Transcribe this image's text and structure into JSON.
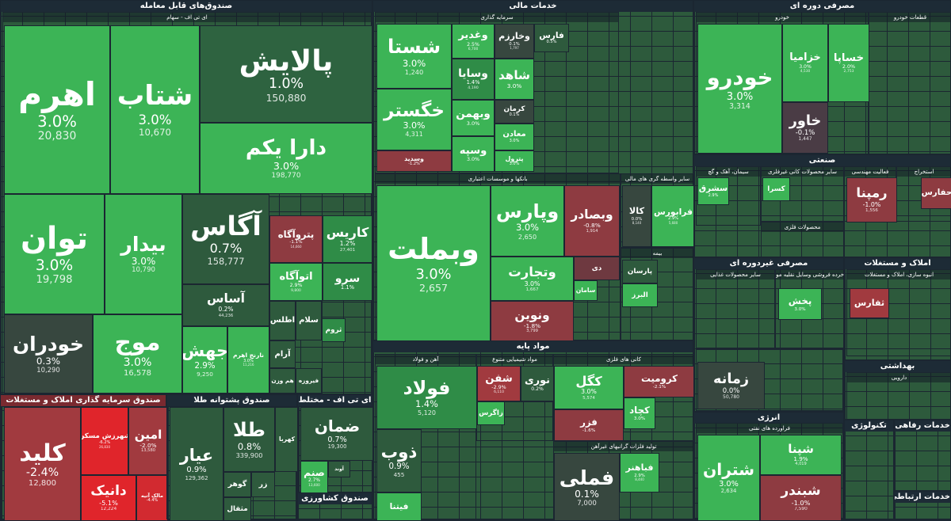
{
  "sectors": [
    {
      "title": "صندوق‌های قابل معامله",
      "sections": [
        {
          "title": "ای تی اف - سهام",
          "tiles": [
            {
              "label": "اهرم",
              "change": "3.0%",
              "value": "20,830",
              "color": "#3cb456"
            },
            {
              "label": "شتاب",
              "change": "3.0%",
              "value": "10,670",
              "color": "#3cb456"
            },
            {
              "label": "پالایش",
              "change": "1.0%",
              "value": "150,880",
              "color": "#2e6340"
            },
            {
              "label": "دارا یکم",
              "change": "3.0%",
              "value": "198,770",
              "color": "#3cb456"
            },
            {
              "label": "توان",
              "change": "3.0%",
              "value": "19,798",
              "color": "#3cb456"
            },
            {
              "label": "بیدار",
              "change": "3.0%",
              "value": "10,790",
              "color": "#3cb456"
            },
            {
              "label": "آگاس",
              "change": "0.7%",
              "value": "158,777",
              "color": "#2e5a3d"
            },
            {
              "label": "پتروآگاه",
              "change": "-1.1%",
              "value": "14,660",
              "color": "#8e3b41"
            },
            {
              "label": "کاریس",
              "change": "1.2%",
              "value": "27,401",
              "color": "#2f8c47"
            },
            {
              "label": "اتوآگاه",
              "change": "2.9%",
              "value": "9,800",
              "color": "#3cb456"
            },
            {
              "label": "سرو",
              "change": "1.1%",
              "color": "#2f8c47"
            },
            {
              "label": "آساس",
              "change": "0.2%",
              "value": "44,236",
              "color": "#2e5a3d"
            },
            {
              "label": "خودران",
              "change": "0.3%",
              "value": "10,290",
              "color": "#37473f"
            },
            {
              "label": "موج",
              "change": "3.0%",
              "value": "16,578",
              "color": "#3cb456"
            },
            {
              "label": "جهش",
              "change": "2.9%",
              "value": "9,250",
              "color": "#3cb456"
            },
            {
              "label": "نارنج اهرم",
              "change": "3.0%",
              "value": "11,216",
              "color": "#3cb456"
            },
            {
              "label": "اطلس",
              "color": "#2e5a3d"
            },
            {
              "label": "سلام",
              "color": "#2e5a3d"
            },
            {
              "label": "ثروم",
              "color": "#2f8c47"
            },
            {
              "label": "آرام",
              "color": "#2e5a3d"
            },
            {
              "label": "هم وزن",
              "color": "#2e5a3d"
            },
            {
              "label": "فیروزه",
              "color": "#2e5a3d"
            }
          ]
        }
      ]
    },
    {
      "title": "صندوق سرمایه گذاری املاک و مستغلات",
      "sections": [
        {
          "tiles": [
            {
              "label": "کلید",
              "change": "-2.4%",
              "value": "12,800",
              "color": "#a13a3f"
            },
            {
              "label": "شهرزش مسکن",
              "change": "-6.2%",
              "value": "26,830",
              "color": "#e0252b"
            },
            {
              "label": "امین",
              "change": "-2.0%",
              "value": "13,580",
              "color": "#a13a3f"
            },
            {
              "label": "دانیک",
              "change": "-5.1%",
              "value": "12,224",
              "color": "#e0252b"
            },
            {
              "label": "مالک آتیه",
              "change": "-4.4%",
              "color": "#d22a30"
            }
          ]
        }
      ]
    },
    {
      "title": "صندوق پشتوانه طلا",
      "sections": [
        {
          "tiles": [
            {
              "label": "عیار",
              "change": "0.9%",
              "value": "129,362",
              "color": "#2e5a3d"
            },
            {
              "label": "طلا",
              "change": "0.8%",
              "value": "339,900",
              "color": "#2e5a3d"
            },
            {
              "label": "کهربا",
              "color": "#2e5a3d"
            },
            {
              "label": "گوهر",
              "color": "#2e5a3d"
            },
            {
              "label": "زر",
              "color": "#2e5a3d"
            },
            {
              "label": "مثقال",
              "color": "#2e5a3d"
            }
          ]
        }
      ]
    },
    {
      "title": "ای تی اف - مختلط",
      "sections": [
        {
          "tiles": [
            {
              "label": "ضمان",
              "change": "0.7%",
              "value": "19,300",
              "color": "#2e5a3d"
            },
            {
              "label": "صنم",
              "change": "2.7%",
              "value": "13,600",
              "color": "#3cb456"
            },
            {
              "label": "آوند",
              "color": "#2e5a3d"
            }
          ]
        }
      ]
    },
    {
      "title": "صندوق کشاورزی",
      "sections": []
    },
    {
      "title": "خدمات مالی",
      "sections": [
        {
          "title": "سرمایه گذاری",
          "tiles": [
            {
              "label": "شستا",
              "change": "3.0%",
              "value": "1,240",
              "color": "#3cb456"
            },
            {
              "label": "خگستر",
              "change": "3.0%",
              "value": "4,311",
              "color": "#3cb456"
            },
            {
              "label": "وسدید",
              "change": "-1.2%",
              "color": "#8e3b41"
            },
            {
              "label": "وغدیر",
              "change": "2.5%",
              "value": "6,700",
              "color": "#3cb456"
            },
            {
              "label": "وخارزم",
              "change": "0.1%",
              "value": "1,797",
              "color": "#37473f"
            },
            {
              "label": "وسایا",
              "change": "1.4%",
              "value": "4,190",
              "color": "#2f8c47"
            },
            {
              "label": "شاهد",
              "change": "3.0%",
              "color": "#3cb456"
            },
            {
              "label": "وبهمن",
              "change": "3.0%",
              "color": "#3cb456"
            },
            {
              "label": "کرمان",
              "change": "0.1%",
              "color": "#37473f"
            },
            {
              "label": "معادن",
              "change": "3.0%",
              "color": "#3cb456"
            },
            {
              "label": "وسپه",
              "change": "3.0%",
              "color": "#3cb456"
            },
            {
              "label": "پترول",
              "change": "3.0%",
              "color": "#3cb456"
            },
            {
              "label": "فارس",
              "change": "0.5%",
              "color": "#2e5a3d"
            }
          ]
        },
        {
          "title": "بانکها و موسسات اعتباری",
          "tiles": [
            {
              "label": "وبملت",
              "change": "3.0%",
              "value": "2,657",
              "color": "#3cb456"
            },
            {
              "label": "وپارس",
              "change": "3.0%",
              "value": "2,650",
              "color": "#3cb456"
            },
            {
              "label": "وبصادر",
              "change": "-0.8%",
              "value": "1,914",
              "color": "#8e3b41"
            },
            {
              "label": "وتجارت",
              "change": "3.0%",
              "value": "1,667",
              "color": "#3cb456"
            },
            {
              "label": "ونوین",
              "change": "-1.8%",
              "value": "3,799",
              "color": "#8e3b41"
            },
            {
              "label": "دی",
              "color": "#6e3940"
            },
            {
              "label": "سامان",
              "color": "#3cb456"
            }
          ]
        },
        {
          "title": "سایر واسطه گری های مالی",
          "tiles": [
            {
              "label": "کالا",
              "change": "0.0%",
              "value": "8,140",
              "color": "#37473f"
            },
            {
              "label": "فرابورس",
              "change": "2.9%",
              "value": "5,680",
              "color": "#3cb456"
            }
          ]
        },
        {
          "title": "بیمه",
          "tiles": [
            {
              "label": "پارسان",
              "color": "#2e5a3d"
            },
            {
              "label": "البرز",
              "color": "#3cb456"
            }
          ]
        }
      ]
    },
    {
      "title": "مواد پایه",
      "sections": [
        {
          "title": "آهن و فولاد",
          "tiles": [
            {
              "label": "فولاد",
              "change": "1.4%",
              "value": "5,120",
              "color": "#2f8c47"
            },
            {
              "label": "ذوب",
              "change": "0.9%",
              "value": "455",
              "color": "#2e5a3d"
            },
            {
              "label": "فیتنا",
              "color": "#3cb456"
            }
          ]
        },
        {
          "title": "مواد شیمیایی متنوع",
          "tiles": [
            {
              "label": "شفن",
              "change": "-2.9%",
              "value": "6,110",
              "color": "#a13a3f"
            },
            {
              "label": "نوری",
              "change": "0.2%",
              "color": "#2e5a3d"
            },
            {
              "label": "زاگرس",
              "color": "#3cb456"
            }
          ]
        },
        {
          "title": "کانی های فلزی",
          "tiles": [
            {
              "label": "کگل",
              "change": "3.0%",
              "value": "5,574",
              "color": "#3cb456"
            },
            {
              "label": "کرومیت",
              "change": "-2.1%",
              "color": "#8e3b41"
            },
            {
              "label": "کچاد",
              "change": "3.0%",
              "color": "#3cb456"
            },
            {
              "label": "فزر",
              "change": "-1.6%",
              "color": "#8e3b41"
            }
          ]
        },
        {
          "title": "تولید فلزات گرانبهای غیرآهن",
          "tiles": [
            {
              "label": "فملی",
              "change": "0.1%",
              "value": "7,000",
              "color": "#37473f"
            },
            {
              "label": "فباهنر",
              "change": "2.9%",
              "value": "8,440",
              "color": "#3cb456"
            }
          ]
        }
      ]
    },
    {
      "title": "مصرفی دوره ای",
      "sections": [
        {
          "title": "خودرو",
          "tiles": [
            {
              "label": "خودرو",
              "change": "3.0%",
              "value": "3,314",
              "color": "#3cb456"
            },
            {
              "label": "خزامیا",
              "change": "3.0%",
              "value": "4,530",
              "color": "#3cb456"
            },
            {
              "label": "خساپا",
              "change": "2.0%",
              "value": "2,753",
              "color": "#3cb456"
            },
            {
              "label": "خاور",
              "change": "-0.1%",
              "value": "1,447",
              "color": "#4a3c45"
            }
          ]
        },
        {
          "title": "قطعات خودرو",
          "tiles": []
        }
      ]
    },
    {
      "title": "صنعتی",
      "sections": [
        {
          "title": "سیمان، آهک و گچ",
          "tiles": [
            {
              "label": "سشرق",
              "change": "2.9%",
              "color": "#3cb456"
            }
          ]
        },
        {
          "title": "سایر محصولات کانی غیرفلزی",
          "tiles": [
            {
              "label": "کسرا",
              "color": "#3cb456"
            }
          ]
        },
        {
          "title": "فعالیت مهندسی",
          "tiles": [
            {
              "label": "رمپنا",
              "change": "-1.0%",
              "value": "1,556",
              "color": "#8e3b41"
            }
          ]
        },
        {
          "title": "استخراج",
          "tiles": [
            {
              "label": "حفارس",
              "color": "#8e3b41"
            }
          ]
        },
        {
          "title": "محصولات فلزی",
          "tiles": []
        }
      ]
    },
    {
      "title": "مصرفی غیردوره ای",
      "sections": [
        {
          "title": "سایر محصولات غذایی",
          "tiles": []
        },
        {
          "title": "خرده فروشی وسایل نقلیه موتوری",
          "tiles": [
            {
              "label": "پخش",
              "change": "3.0%",
              "color": "#3cb456"
            }
          ]
        },
        {
          "tiles": [
            {
              "label": "زمانه",
              "change": "0.0%",
              "value": "50,780",
              "color": "#37473f"
            }
          ]
        }
      ]
    },
    {
      "title": "املاک و مستغلات",
      "sections": [
        {
          "title": "انبوه سازی، املاک و مستغلات",
          "tiles": [
            {
              "label": "ثفارس",
              "color": "#a13a3f"
            }
          ]
        }
      ]
    },
    {
      "title": "بهداشتی",
      "sections": [
        {
          "title": "دارویی",
          "tiles": []
        }
      ]
    },
    {
      "title": "انرژی",
      "sections": [
        {
          "title": "فراورده های نفتی",
          "tiles": [
            {
              "label": "شتران",
              "change": "3.0%",
              "value": "2,634",
              "color": "#3cb456"
            },
            {
              "label": "شپنا",
              "change": "1.9%",
              "value": "4,019",
              "color": "#3cb456"
            },
            {
              "label": "شبندر",
              "change": "-1.0%",
              "value": "7,590",
              "color": "#8e3b41"
            }
          ]
        }
      ]
    },
    {
      "title": "تکنولوژی",
      "sections": []
    },
    {
      "title": "خدمات رفاهی",
      "sections": []
    },
    {
      "title": "خدمات ارتباطی",
      "sections": []
    }
  ]
}
